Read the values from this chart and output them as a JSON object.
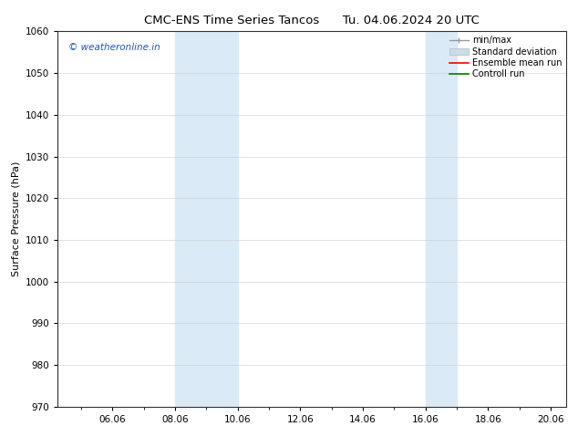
{
  "title_left": "CMC-ENS Time Series Tancos",
  "title_right": "Tu. 04.06.2024 20 UTC",
  "xlabel": "",
  "ylabel": "Surface Pressure (hPa)",
  "ylim": [
    970,
    1060
  ],
  "yticks": [
    970,
    980,
    990,
    1000,
    1010,
    1020,
    1030,
    1040,
    1050,
    1060
  ],
  "xlim_start": 4.25,
  "xlim_end": 20.5,
  "xtick_labels": [
    "06.06",
    "08.06",
    "10.06",
    "12.06",
    "14.06",
    "16.06",
    "18.06",
    "20.06"
  ],
  "xtick_positions": [
    6.0,
    8.0,
    10.0,
    12.0,
    14.0,
    16.0,
    18.0,
    20.0
  ],
  "shaded_regions": [
    {
      "xmin": 8.0,
      "xmax": 10.0
    },
    {
      "xmin": 16.0,
      "xmax": 17.0
    }
  ],
  "shade_color": "#daeaf7",
  "watermark_text": "© weatheronline.in",
  "watermark_color": "#2255bb",
  "legend_items": [
    {
      "label": "min/max"
    },
    {
      "label": "Standard deviation"
    },
    {
      "label": "Ensemble mean run"
    },
    {
      "label": "Controll run"
    }
  ],
  "bg_color": "#ffffff",
  "grid_color": "#cccccc",
  "title_fontsize": 9.5,
  "axis_label_fontsize": 8,
  "tick_fontsize": 7.5,
  "legend_fontsize": 7,
  "watermark_fontsize": 7.5
}
